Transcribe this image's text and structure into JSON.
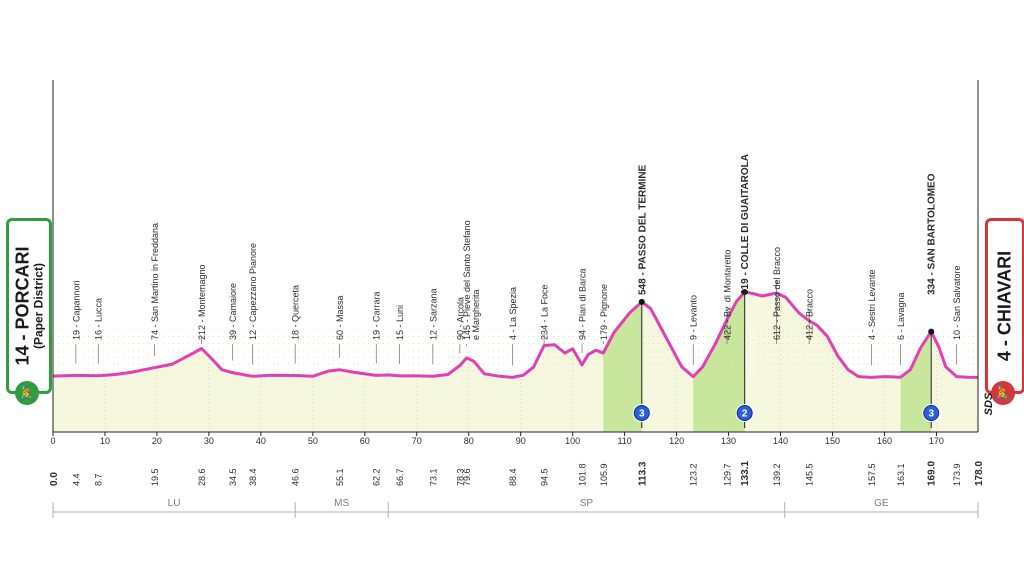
{
  "stage": {
    "start": {
      "label": "14 - PORCARI",
      "sub": "(Paper District)",
      "icon": "cyclist-icon"
    },
    "finish": {
      "label": "4 - CHIAVARI",
      "icon": "cyclist-icon"
    },
    "logo": "SDS"
  },
  "chart_data": {
    "type": "area",
    "title": "",
    "xlabel": "",
    "ylabel": "",
    "xlim": [
      0,
      178
    ],
    "ylim": [
      0,
      650
    ],
    "x_ticks": [
      0,
      10,
      20,
      30,
      40,
      50,
      60,
      70,
      80,
      90,
      100,
      110,
      120,
      130,
      140,
      150,
      160,
      170
    ],
    "y_ticks": [
      50,
      100,
      150,
      200,
      250,
      300,
      350
    ],
    "profile": [
      [
        0,
        14
      ],
      [
        4.4,
        19
      ],
      [
        8.7,
        16
      ],
      [
        12,
        25
      ],
      [
        15,
        40
      ],
      [
        19.5,
        74
      ],
      [
        23,
        100
      ],
      [
        26,
        160
      ],
      [
        28.6,
        212
      ],
      [
        30.5,
        140
      ],
      [
        32.5,
        60
      ],
      [
        34.5,
        39
      ],
      [
        36.5,
        25
      ],
      [
        38.4,
        12
      ],
      [
        42,
        20
      ],
      [
        46.6,
        18
      ],
      [
        50,
        12
      ],
      [
        53,
        50
      ],
      [
        55.1,
        60
      ],
      [
        58,
        40
      ],
      [
        62.2,
        19
      ],
      [
        64.5,
        22
      ],
      [
        66.7,
        15
      ],
      [
        70,
        15
      ],
      [
        73.1,
        12
      ],
      [
        76,
        25
      ],
      [
        78.3,
        90
      ],
      [
        79.6,
        145
      ],
      [
        81,
        120
      ],
      [
        83,
        30
      ],
      [
        86,
        12
      ],
      [
        88.4,
        4
      ],
      [
        90.5,
        20
      ],
      [
        92.5,
        80
      ],
      [
        94.5,
        234
      ],
      [
        96.5,
        240
      ],
      [
        98.5,
        180
      ],
      [
        100,
        210
      ],
      [
        101.8,
        94
      ],
      [
        103,
        170
      ],
      [
        104.5,
        200
      ],
      [
        105.9,
        179
      ],
      [
        108,
        330
      ],
      [
        111,
        470
      ],
      [
        113.3,
        548
      ],
      [
        115,
        500
      ],
      [
        117,
        360
      ],
      [
        119,
        220
      ],
      [
        121,
        80
      ],
      [
        123.2,
        9
      ],
      [
        125,
        80
      ],
      [
        127.5,
        250
      ],
      [
        129.7,
        422
      ],
      [
        131.5,
        550
      ],
      [
        133.1,
        619
      ],
      [
        134.5,
        610
      ],
      [
        136.5,
        590
      ],
      [
        139.2,
        612
      ],
      [
        141,
        580
      ],
      [
        143.5,
        470
      ],
      [
        145.5,
        412
      ],
      [
        147,
        380
      ],
      [
        149,
        300
      ],
      [
        151,
        160
      ],
      [
        153,
        60
      ],
      [
        155,
        10
      ],
      [
        157.5,
        4
      ],
      [
        160,
        10
      ],
      [
        163.1,
        6
      ],
      [
        165,
        60
      ],
      [
        167,
        220
      ],
      [
        169,
        334
      ],
      [
        170.5,
        220
      ],
      [
        171.8,
        80
      ],
      [
        173.9,
        10
      ],
      [
        176,
        5
      ],
      [
        178,
        4
      ]
    ],
    "waypoints": [
      {
        "km": "4.4",
        "x": 4.4,
        "label": "19 - Capannori",
        "bold": false
      },
      {
        "km": "8.7",
        "x": 8.7,
        "label": "16 - Lucca",
        "bold": false
      },
      {
        "km": "19.5",
        "x": 19.5,
        "label": "74 - San Martino in Freddana",
        "bold": false
      },
      {
        "km": "28.6",
        "x": 28.6,
        "label": "212 - Montemagno",
        "bold": false
      },
      {
        "km": "34.5",
        "x": 34.5,
        "label": "39 - Camaiore",
        "bold": false
      },
      {
        "km": "38.4",
        "x": 38.4,
        "label": "12 - Capezzano Pianore",
        "bold": false
      },
      {
        "km": "46.6",
        "x": 46.6,
        "label": "18 - Querceta",
        "bold": false
      },
      {
        "km": "55.1",
        "x": 55.1,
        "label": "60 - Massa",
        "bold": false
      },
      {
        "km": "62.2",
        "x": 62.2,
        "label": "19 - Carrara",
        "bold": false
      },
      {
        "km": "66.7",
        "x": 66.7,
        "label": "15 - Luni",
        "bold": false
      },
      {
        "km": "73.1",
        "x": 73.1,
        "label": "12 - Sarzana",
        "bold": false
      },
      {
        "km": "78.3",
        "x": 78.3,
        "label": "90 - Arcola",
        "bold": false
      },
      {
        "km": "79.6",
        "x": 79.6,
        "label": "145 - Pieve del Santo Stefano",
        "label2": "e Margherita",
        "bold": false
      },
      {
        "km": "88.4",
        "x": 88.4,
        "label": "4 - La Spezia",
        "bold": false
      },
      {
        "km": "94.5",
        "x": 94.5,
        "label": "234 - La Foce",
        "bold": false
      },
      {
        "km": "101.8",
        "x": 101.8,
        "label": "94 - Pian di Barca",
        "bold": false
      },
      {
        "km": "105.9",
        "x": 105.9,
        "label": "179 - Pignone",
        "bold": false
      },
      {
        "km": "113.3",
        "x": 113.3,
        "label": "548 - PASSO DEL TERMINE",
        "bold": true
      },
      {
        "km": "123.2",
        "x": 123.2,
        "label": "9 - Levanto",
        "bold": false
      },
      {
        "km": "129.7",
        "x": 129.7,
        "label": "422 - Bv. di Montaretto",
        "bold": false
      },
      {
        "km": "133.1",
        "x": 133.1,
        "label": "619 - COLLE DI GUAITAROLA",
        "bold": true
      },
      {
        "km": "139.2",
        "x": 139.2,
        "label": "612 - Passo del Bracco",
        "bold": false
      },
      {
        "km": "145.5",
        "x": 145.5,
        "label": "412 - Bracco",
        "bold": false
      },
      {
        "km": "157.5",
        "x": 157.5,
        "label": "4 - Sestri Levante",
        "bold": false
      },
      {
        "km": "163.1",
        "x": 163.1,
        "label": "6 - Lavagna",
        "bold": false
      },
      {
        "km": "169.0",
        "x": 169.0,
        "label": "334 - SAN BARTOLOMEO",
        "bold": true
      },
      {
        "km": "173.9",
        "x": 173.9,
        "label": "10 - San Salvatore",
        "bold": false
      }
    ],
    "start_km": "0.0",
    "end_km": "178.0",
    "climbs": [
      {
        "from": 105.9,
        "to": 113.3,
        "category": "3"
      },
      {
        "from": 123.2,
        "to": 133.1,
        "category": "2"
      },
      {
        "from": 163.1,
        "to": 169.0,
        "category": "3"
      }
    ],
    "regions": [
      {
        "code": "LU",
        "from": 0,
        "to": 46.6
      },
      {
        "code": "MS",
        "from": 46.6,
        "to": 64.5
      },
      {
        "code": "SP",
        "from": 64.5,
        "to": 140.8
      },
      {
        "code": "GE",
        "from": 140.8,
        "to": 178
      }
    ],
    "colors": {
      "line": "#e03fb6",
      "fill": "#f6f7df",
      "climb": "#c9e79c",
      "badge": "#2a60d8",
      "grid": "#cfd4a8"
    }
  }
}
